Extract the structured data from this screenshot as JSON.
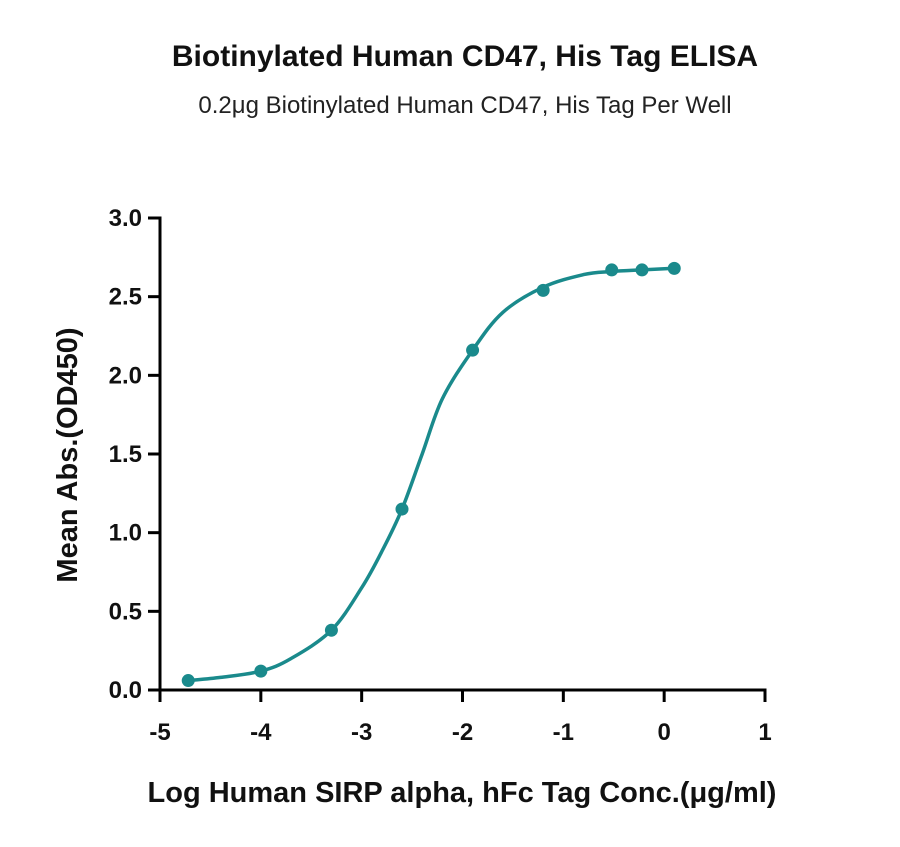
{
  "chart_data": {
    "type": "scatter",
    "title": "Biotinylated Human CD47, His Tag ELISA",
    "subtitle": "0.2μg Biotinylated Human CD47, His Tag Per Well",
    "xlabel": "Log Human SIRP alpha, hFc Tag Conc.(μg/ml)",
    "ylabel": "Mean Abs.(OD450)",
    "xlim": [
      -5,
      1
    ],
    "ylim": [
      0,
      3
    ],
    "xticks": [
      "-5",
      "-4",
      "-3",
      "-2",
      "-1",
      "0",
      "1"
    ],
    "yticks": [
      "0.0",
      "0.5",
      "1.0",
      "1.5",
      "2.0",
      "2.5",
      "3.0"
    ],
    "grid": false,
    "color": "#1a8a8c",
    "series": [
      {
        "points": {
          "x": [
            -4.72,
            -4.0,
            -3.3,
            -2.6,
            -1.9,
            -1.2,
            -0.52,
            -0.22,
            0.1
          ],
          "y": [
            0.06,
            0.12,
            0.38,
            1.15,
            2.16,
            2.54,
            2.67,
            2.67,
            2.68
          ]
        },
        "fit_curve": {
          "x": [
            -4.72,
            -4.4,
            -4.0,
            -3.7,
            -3.3,
            -3.0,
            -2.8,
            -2.6,
            -2.4,
            -2.2,
            -1.9,
            -1.6,
            -1.2,
            -0.8,
            -0.52,
            -0.22,
            0.1
          ],
          "y": [
            0.06,
            0.08,
            0.12,
            0.2,
            0.38,
            0.65,
            0.88,
            1.15,
            1.5,
            1.85,
            2.16,
            2.4,
            2.56,
            2.64,
            2.66,
            2.67,
            2.68
          ]
        }
      }
    ]
  }
}
